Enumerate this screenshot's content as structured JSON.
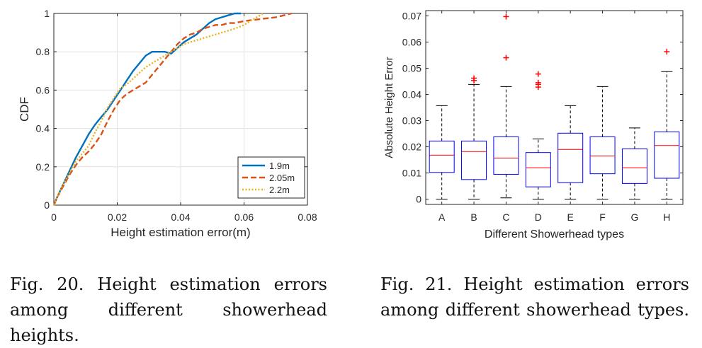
{
  "chart_data": [
    {
      "type": "line",
      "title": "",
      "xlabel": "Height estimation error(m)",
      "ylabel": "CDF",
      "xlim": [
        0,
        0.08
      ],
      "ylim": [
        0,
        1
      ],
      "xticks": [
        "0",
        "0.02",
        "0.04",
        "0.06",
        "0.08"
      ],
      "yticks": [
        "0",
        "0.2",
        "0.4",
        "0.6",
        "0.8",
        "1"
      ],
      "grid": true,
      "legend": "bottom-right",
      "series": [
        {
          "name": "1.9m",
          "color": "#0072BD",
          "style": "solid",
          "x": [
            0,
            0.001,
            0.003,
            0.005,
            0.007,
            0.009,
            0.011,
            0.013,
            0.015,
            0.017,
            0.019,
            0.021,
            0.023,
            0.025,
            0.027,
            0.029,
            0.031,
            0.033,
            0.035,
            0.037,
            0.039,
            0.041,
            0.043,
            0.045,
            0.047,
            0.049,
            0.051,
            0.053,
            0.055,
            0.057,
            0.059
          ],
          "y": [
            0,
            0.04,
            0.11,
            0.18,
            0.25,
            0.31,
            0.37,
            0.42,
            0.46,
            0.5,
            0.55,
            0.6,
            0.65,
            0.7,
            0.74,
            0.78,
            0.8,
            0.8,
            0.8,
            0.79,
            0.82,
            0.85,
            0.87,
            0.89,
            0.92,
            0.95,
            0.97,
            0.98,
            0.99,
            1.0,
            1.0
          ]
        },
        {
          "name": "2.05m",
          "color": "#D95319",
          "style": "dashed",
          "x": [
            0,
            0.001,
            0.003,
            0.005,
            0.007,
            0.009,
            0.011,
            0.013,
            0.015,
            0.017,
            0.019,
            0.021,
            0.023,
            0.025,
            0.027,
            0.029,
            0.031,
            0.033,
            0.035,
            0.037,
            0.039,
            0.041,
            0.043,
            0.045,
            0.047,
            0.049,
            0.051,
            0.053,
            0.055,
            0.057,
            0.06,
            0.065,
            0.07,
            0.075
          ],
          "y": [
            0,
            0.04,
            0.1,
            0.16,
            0.21,
            0.25,
            0.28,
            0.32,
            0.37,
            0.44,
            0.5,
            0.55,
            0.58,
            0.6,
            0.62,
            0.64,
            0.68,
            0.72,
            0.76,
            0.8,
            0.84,
            0.87,
            0.89,
            0.9,
            0.92,
            0.93,
            0.94,
            0.94,
            0.95,
            0.95,
            0.96,
            0.97,
            0.98,
            1.0
          ]
        },
        {
          "name": "2.2m",
          "color": "#EDB120",
          "style": "dotted",
          "x": [
            0,
            0.001,
            0.003,
            0.005,
            0.007,
            0.009,
            0.011,
            0.013,
            0.015,
            0.017,
            0.019,
            0.021,
            0.023,
            0.025,
            0.027,
            0.029,
            0.031,
            0.033,
            0.035,
            0.037,
            0.039,
            0.041,
            0.043,
            0.045,
            0.047,
            0.049,
            0.051,
            0.053,
            0.055,
            0.057,
            0.06,
            0.063,
            0.066
          ],
          "y": [
            0,
            0.04,
            0.11,
            0.17,
            0.23,
            0.27,
            0.31,
            0.38,
            0.44,
            0.51,
            0.56,
            0.61,
            0.63,
            0.66,
            0.69,
            0.72,
            0.74,
            0.76,
            0.78,
            0.8,
            0.82,
            0.84,
            0.85,
            0.86,
            0.87,
            0.88,
            0.89,
            0.9,
            0.91,
            0.92,
            0.94,
            0.97,
            1.0
          ]
        }
      ]
    },
    {
      "type": "box",
      "title": "",
      "xlabel": "Different Showerhead types",
      "ylabel": "Absolute Height Error",
      "ylim": [
        -0.002,
        0.072
      ],
      "yticks": [
        "0",
        "0.01",
        "0.02",
        "0.03",
        "0.04",
        "0.05",
        "0.06",
        "0.07"
      ],
      "grid": false,
      "box_color": "#0000FF",
      "median_color": "#FF0000",
      "outlier_color": "#FF0000",
      "categories": [
        "A",
        "B",
        "C",
        "D",
        "E",
        "F",
        "G",
        "H"
      ],
      "boxes": [
        {
          "min": 0.0,
          "q1": 0.0102,
          "median": 0.0168,
          "q3": 0.0222,
          "max": 0.0357,
          "outliers": []
        },
        {
          "min": 0.0,
          "q1": 0.0075,
          "median": 0.0182,
          "q3": 0.0222,
          "max": 0.0438,
          "outliers": [
            0.0453,
            0.0462
          ]
        },
        {
          "min": 0.0005,
          "q1": 0.0095,
          "median": 0.0157,
          "q3": 0.0238,
          "max": 0.043,
          "outliers": [
            0.054,
            0.0697
          ]
        },
        {
          "min": 0.0,
          "q1": 0.0047,
          "median": 0.012,
          "q3": 0.0178,
          "max": 0.023,
          "outliers": [
            0.0428,
            0.0438,
            0.0445,
            0.0478
          ]
        },
        {
          "min": 0.0,
          "q1": 0.0063,
          "median": 0.019,
          "q3": 0.0252,
          "max": 0.0357,
          "outliers": []
        },
        {
          "min": 0.0,
          "q1": 0.0097,
          "median": 0.0165,
          "q3": 0.0238,
          "max": 0.043,
          "outliers": []
        },
        {
          "min": 0.0,
          "q1": 0.006,
          "median": 0.012,
          "q3": 0.0192,
          "max": 0.0272,
          "outliers": []
        },
        {
          "min": 0.0,
          "q1": 0.008,
          "median": 0.0205,
          "q3": 0.0257,
          "max": 0.0487,
          "outliers": [
            0.0563
          ]
        }
      ]
    }
  ],
  "captions": {
    "fig20": "Fig. 20. Height estimation errors among different showerhead heights.",
    "fig21": "Fig. 21. Height estimation errors among different showerhead types."
  }
}
